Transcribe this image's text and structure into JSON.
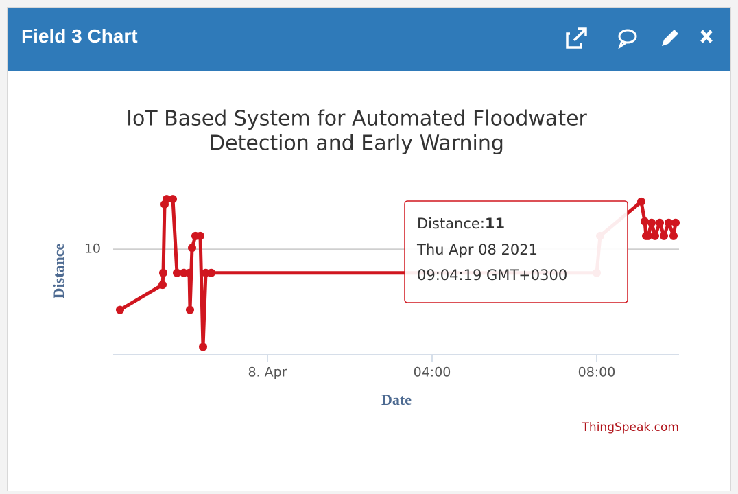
{
  "header": {
    "title": "Field 3 Chart"
  },
  "chart_data": {
    "type": "line",
    "title": "IoT Based System for Automated Floodwater",
    "subtitle": "Detection and Early Warning",
    "x_label": "Date",
    "y_label": "Distance",
    "credit": "ThingSpeak.com",
    "xlim": [
      "2021-04-07T20:15",
      "2021-04-08T10:00"
    ],
    "xticks": [
      {
        "value": "2021-04-08T00:00",
        "label": "8. Apr"
      },
      {
        "value": "2021-04-08T04:00",
        "label": "04:00"
      },
      {
        "value": "2021-04-08T08:00",
        "label": "08:00"
      }
    ],
    "ylim": [
      2,
      15
    ],
    "yticks": [
      10
    ],
    "grid": true,
    "series": [
      {
        "name": "Distance",
        "color": "#d0161f",
        "x": [
          "2021-04-07T20:25",
          "2021-04-07T21:27",
          "2021-04-07T21:28",
          "2021-04-07T21:30",
          "2021-04-07T21:33",
          "2021-04-07T21:42",
          "2021-04-07T21:48",
          "2021-04-07T21:58",
          "2021-04-07T22:06",
          "2021-04-07T22:07",
          "2021-04-07T22:10",
          "2021-04-07T22:15",
          "2021-04-07T22:22",
          "2021-04-07T22:26",
          "2021-04-07T22:30",
          "2021-04-07T22:38",
          "2021-04-08T08:00",
          "2021-04-08T08:05",
          "2021-04-08T09:05",
          "2021-04-08T09:10",
          "2021-04-08T09:12",
          "2021-04-08T09:15",
          "2021-04-08T09:20",
          "2021-04-08T09:25",
          "2021-04-08T09:32",
          "2021-04-08T09:38",
          "2021-04-08T09:45",
          "2021-04-08T09:52",
          "2021-04-08T09:55"
        ],
        "values": [
          5.4,
          7.3,
          8.2,
          13.4,
          13.8,
          13.8,
          8.2,
          8.2,
          8.2,
          5.4,
          10.1,
          11,
          11,
          2.6,
          8.2,
          8.2,
          8.2,
          11,
          13.6,
          12.1,
          11,
          11,
          12,
          11,
          12,
          11,
          12,
          11,
          12
        ]
      }
    ],
    "tooltip": {
      "label": "Distance:",
      "value": 11,
      "date": "Thu Apr 08 2021",
      "time": "09:04:19 GMT+0300"
    }
  }
}
